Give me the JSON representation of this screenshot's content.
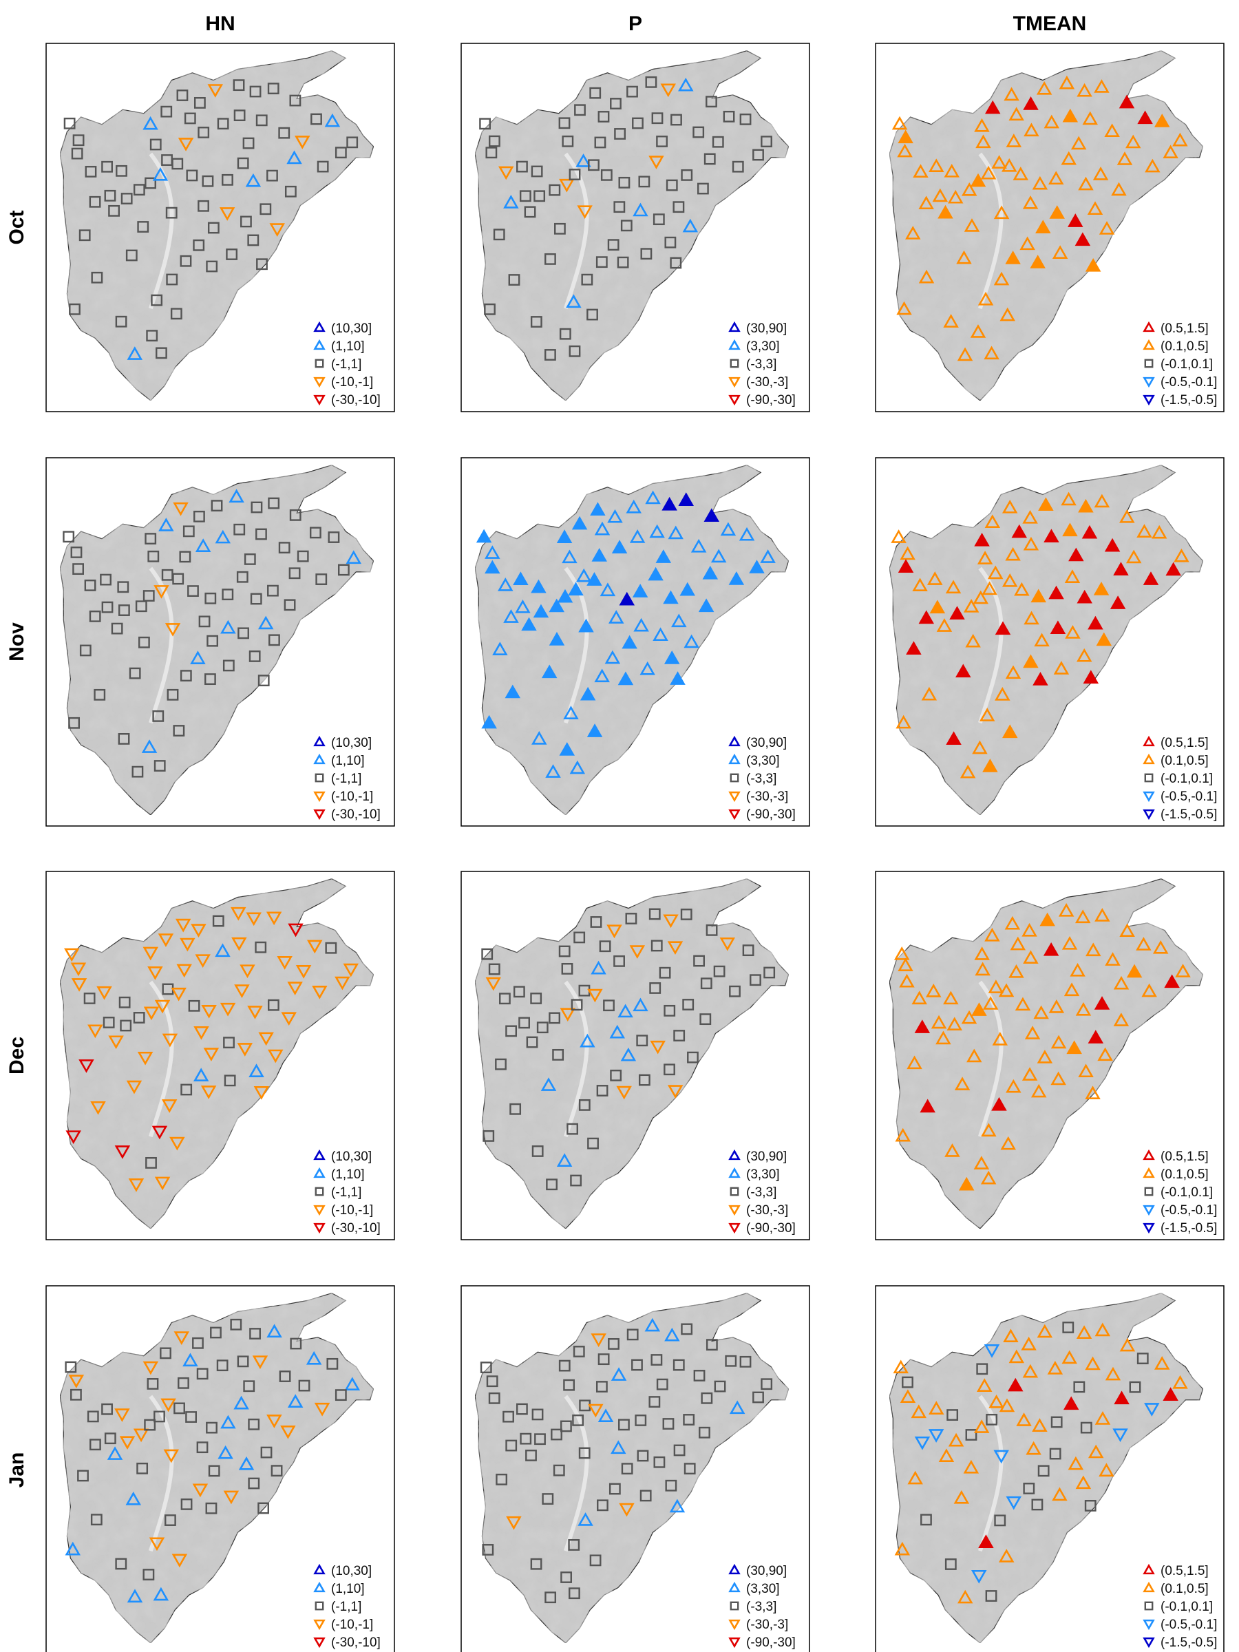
{
  "columns": [
    "HN",
    "P",
    "TMEAN"
  ],
  "rows": [
    "Oct",
    "Nov",
    "Dec",
    "Jan"
  ],
  "legends": {
    "HN": {
      "labels": [
        "(10,30]",
        "(1,10]",
        "(-1,1]",
        "(-10,-1]",
        "(-30,-10]"
      ],
      "colors": [
        "#0000cc",
        "#1e90ff",
        "#555555",
        "#ff8c00",
        "#e00000"
      ],
      "shapes": [
        "tri-up",
        "tri-up",
        "square",
        "tri-down",
        "tri-down"
      ]
    },
    "P": {
      "labels": [
        "(30,90]",
        "(3,30]",
        "(-3,3]",
        "(-30,-3]",
        "(-90,-30]"
      ],
      "colors": [
        "#0000cc",
        "#1e90ff",
        "#555555",
        "#ff8c00",
        "#e00000"
      ],
      "shapes": [
        "tri-up",
        "tri-up",
        "square",
        "tri-down",
        "tri-down"
      ]
    },
    "TMEAN": {
      "labels": [
        "(0.5,1.5]",
        "(0.1,0.5]",
        "(-0.1,0.1]",
        "(-0.5,-0.1]",
        "(-1.5,-0.5]"
      ],
      "colors": [
        "#e00000",
        "#ff8c00",
        "#555555",
        "#1e90ff",
        "#0000cc"
      ],
      "shapes": [
        "tri-up",
        "tri-up",
        "square",
        "tri-down",
        "tri-down"
      ]
    }
  },
  "panel_classes": {
    "Oct": {
      "HN": "mostly-neutral",
      "P": "mostly-neutral",
      "TMEAN": "mostly-warm"
    },
    "Nov": {
      "HN": "mostly-neutral",
      "P": "mostly-wet",
      "TMEAN": "warm-strong"
    },
    "Dec": {
      "HN": "mostly-negative",
      "P": "mostly-neutral",
      "TMEAN": "mostly-warm"
    },
    "Jan": {
      "HN": "mixed",
      "P": "mostly-neutral",
      "TMEAN": "mixed-warm"
    }
  }
}
